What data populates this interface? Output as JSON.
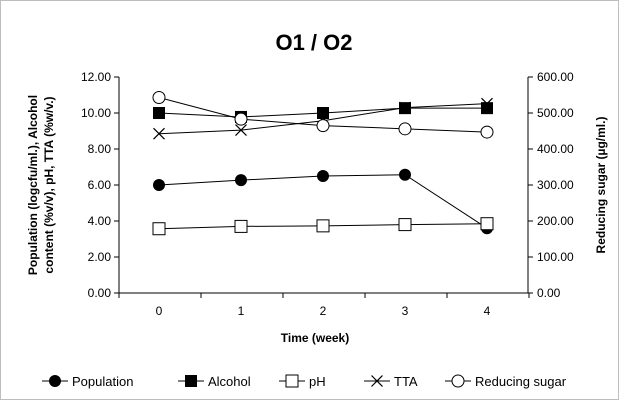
{
  "chart_data": {
    "type": "line",
    "title": "O1 / O2",
    "xlabel": "Time (week)",
    "ylabel": "Population (logcfu/ml.), Alcohol content (%v/v), pH, TTA (%w/v.)",
    "ylabel_line1": "Population (logcfu/ml.), Alcohol",
    "ylabel_line2": "content (%v/v), pH, TTA (%w/v.)",
    "y2label": "Reducing sugar (µg/ml.)",
    "x": [
      0,
      1,
      2,
      3,
      4
    ],
    "x_tick_labels": [
      "0",
      "1",
      "2",
      "3",
      "4"
    ],
    "ylim": [
      0,
      12
    ],
    "y_tick_labels": [
      "0.00",
      "2.00",
      "4.00",
      "6.00",
      "8.00",
      "10.00",
      "12.00"
    ],
    "y2lim": [
      0,
      600
    ],
    "y2_tick_labels": [
      "0.00",
      "100.00",
      "200.00",
      "300.00",
      "400.00",
      "500.00",
      "600.00"
    ],
    "grid": false,
    "legend_position": "bottom",
    "series": [
      {
        "name": "Population",
        "axis": "left",
        "marker": "filled-circle",
        "values": [
          6.0,
          6.27,
          6.5,
          6.57,
          3.6
        ]
      },
      {
        "name": "Alcohol",
        "axis": "left",
        "marker": "filled-square",
        "values": [
          10.0,
          9.78,
          10.0,
          10.27,
          10.27
        ]
      },
      {
        "name": "pH",
        "axis": "left",
        "marker": "open-square",
        "values": [
          3.57,
          3.7,
          3.73,
          3.8,
          3.85
        ]
      },
      {
        "name": "TTA",
        "axis": "left",
        "marker": "x",
        "values": [
          8.85,
          9.05,
          9.57,
          10.3,
          10.52
        ]
      },
      {
        "name": "Reducing sugar",
        "axis": "right",
        "marker": "open-circle",
        "values": [
          543,
          483,
          465,
          456,
          447
        ]
      }
    ]
  }
}
